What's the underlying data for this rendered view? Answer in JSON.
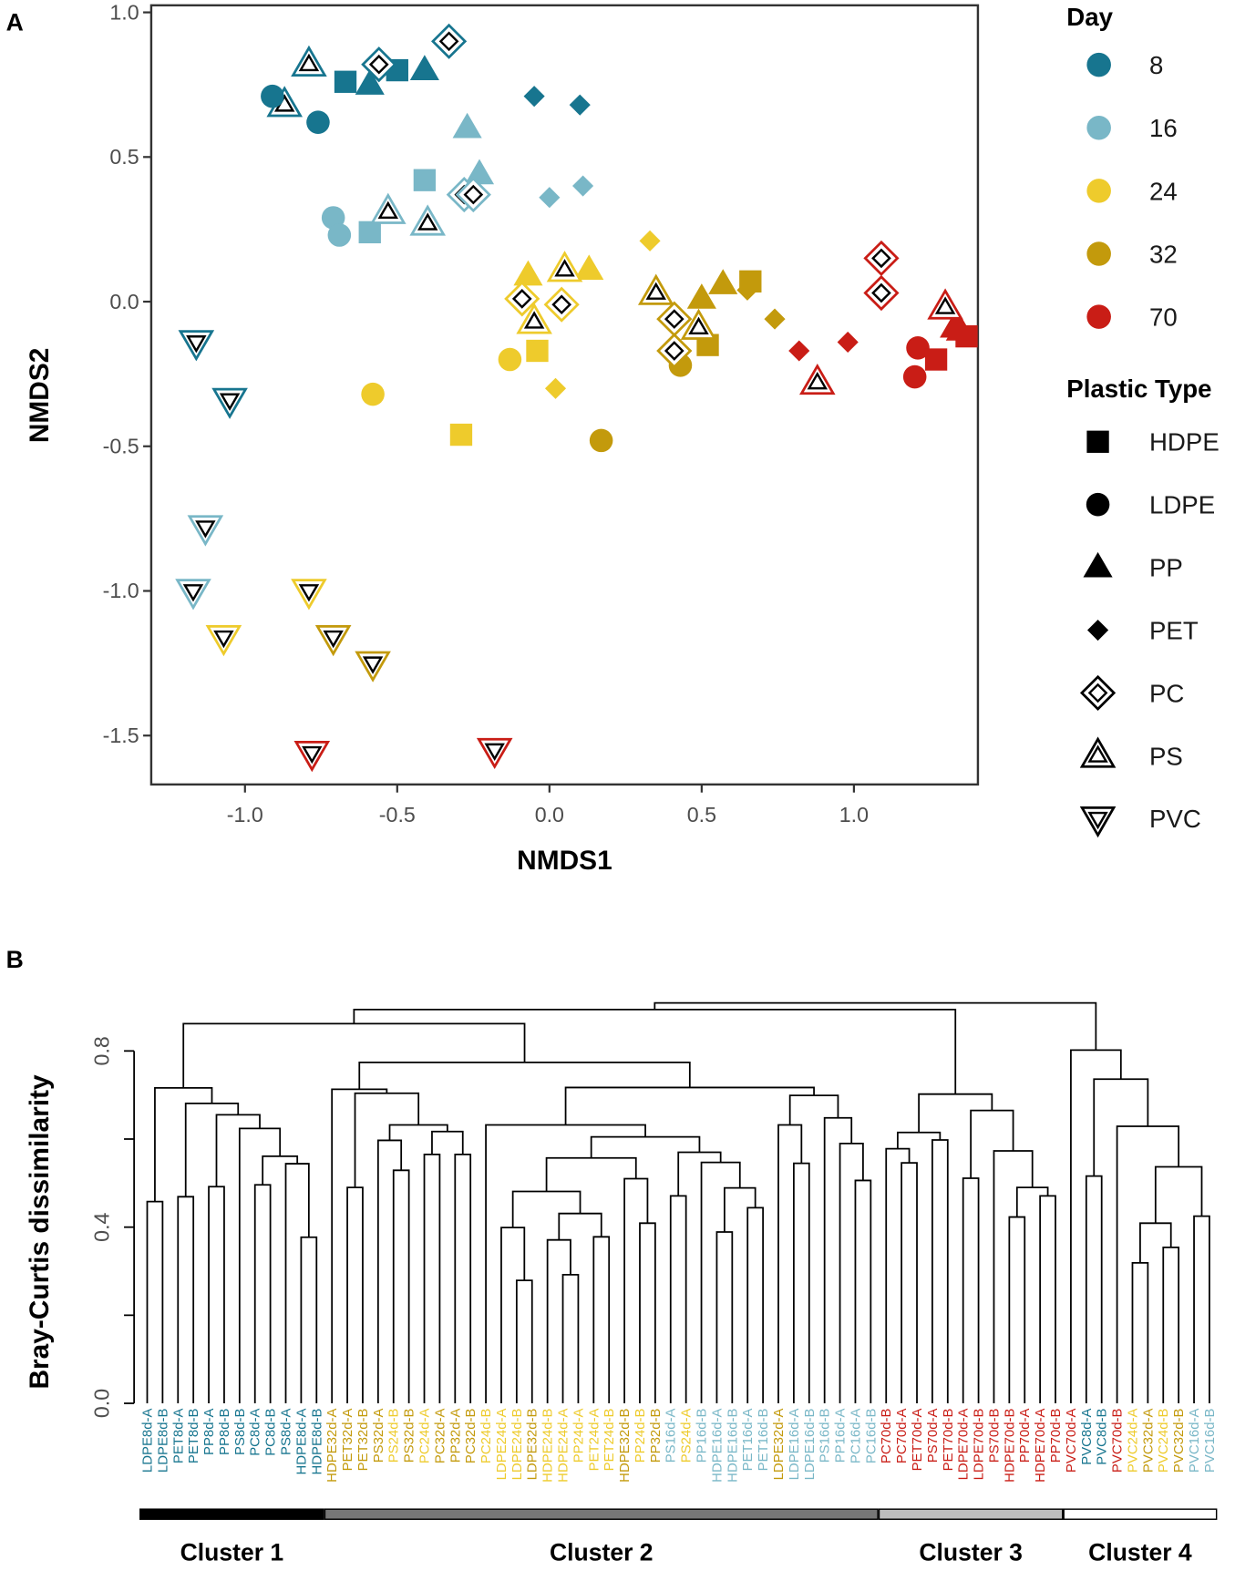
{
  "panels": {
    "a": "A",
    "b": "B"
  },
  "colors": {
    "8": "#17758f",
    "16": "#79b7c7",
    "24": "#eecb2c",
    "32": "#c39a0c",
    "70": "#c91d16"
  },
  "chart_data": [
    {
      "type": "scatter",
      "title": "",
      "xlabel": "NMDS1",
      "ylabel": "NMDS2",
      "xlim": [
        -1.3,
        1.4
      ],
      "ylim": [
        -1.65,
        1.03
      ],
      "xticks": [
        -1.0,
        -0.5,
        0.0,
        0.5,
        1.0
      ],
      "xtick_labels": [
        "-1.0",
        "-0.5",
        "0.0",
        "0.5",
        "1.0"
      ],
      "yticks": [
        1.0,
        0.5,
        0.0,
        -0.5,
        -1.0,
        -1.5
      ],
      "ytick_labels": [
        "1.0",
        "0.5",
        "0.0",
        "-0.5",
        "-1.0",
        "-1.5"
      ],
      "grid": false,
      "legend": {
        "placement": "right",
        "day_title": "Day",
        "days": [
          "8",
          "16",
          "24",
          "32",
          "70"
        ],
        "type_title": "Plastic Type",
        "types": [
          "HDPE",
          "LDPE",
          "PP",
          "PET",
          "PC",
          "PS",
          "PVC"
        ]
      },
      "points": [
        {
          "day": "8",
          "type": "PS",
          "x": -0.79,
          "y": 0.82
        },
        {
          "day": "8",
          "type": "PS",
          "x": -0.87,
          "y": 0.68
        },
        {
          "day": "8",
          "type": "LDPE",
          "x": -0.91,
          "y": 0.71
        },
        {
          "day": "8",
          "type": "LDPE",
          "x": -0.76,
          "y": 0.62
        },
        {
          "day": "8",
          "type": "HDPE",
          "x": -0.67,
          "y": 0.76
        },
        {
          "day": "8",
          "type": "HDPE",
          "x": -0.5,
          "y": 0.8
        },
        {
          "day": "8",
          "type": "PC",
          "x": -0.56,
          "y": 0.82
        },
        {
          "day": "8",
          "type": "PC",
          "x": -0.33,
          "y": 0.9
        },
        {
          "day": "8",
          "type": "PP",
          "x": -0.59,
          "y": 0.75
        },
        {
          "day": "8",
          "type": "PP",
          "x": -0.41,
          "y": 0.8
        },
        {
          "day": "8",
          "type": "PET",
          "x": -0.05,
          "y": 0.71
        },
        {
          "day": "8",
          "type": "PET",
          "x": 0.1,
          "y": 0.68
        },
        {
          "day": "8",
          "type": "PVC",
          "x": -1.16,
          "y": -0.14
        },
        {
          "day": "8",
          "type": "PVC",
          "x": -1.05,
          "y": -0.34
        },
        {
          "day": "16",
          "type": "LDPE",
          "x": -0.71,
          "y": 0.29
        },
        {
          "day": "16",
          "type": "LDPE",
          "x": -0.69,
          "y": 0.23
        },
        {
          "day": "16",
          "type": "HDPE",
          "x": -0.59,
          "y": 0.24
        },
        {
          "day": "16",
          "type": "HDPE",
          "x": -0.41,
          "y": 0.42
        },
        {
          "day": "16",
          "type": "PP",
          "x": -0.27,
          "y": 0.6
        },
        {
          "day": "16",
          "type": "PP",
          "x": -0.23,
          "y": 0.44
        },
        {
          "day": "16",
          "type": "PET",
          "x": 0.0,
          "y": 0.36
        },
        {
          "day": "16",
          "type": "PET",
          "x": 0.11,
          "y": 0.4
        },
        {
          "day": "16",
          "type": "PC",
          "x": -0.28,
          "y": 0.37
        },
        {
          "day": "16",
          "type": "PC",
          "x": -0.25,
          "y": 0.37
        },
        {
          "day": "16",
          "type": "PS",
          "x": -0.53,
          "y": 0.31
        },
        {
          "day": "16",
          "type": "PS",
          "x": -0.4,
          "y": 0.27
        },
        {
          "day": "16",
          "type": "PVC",
          "x": -1.13,
          "y": -0.78
        },
        {
          "day": "16",
          "type": "PVC",
          "x": -1.17,
          "y": -1.0
        },
        {
          "day": "24",
          "type": "LDPE",
          "x": -0.13,
          "y": -0.2
        },
        {
          "day": "24",
          "type": "LDPE",
          "x": -0.58,
          "y": -0.32
        },
        {
          "day": "24",
          "type": "HDPE",
          "x": -0.04,
          "y": -0.17
        },
        {
          "day": "24",
          "type": "HDPE",
          "x": -0.29,
          "y": -0.46
        },
        {
          "day": "24",
          "type": "PP",
          "x": -0.07,
          "y": 0.09
        },
        {
          "day": "24",
          "type": "PP",
          "x": 0.13,
          "y": 0.11
        },
        {
          "day": "24",
          "type": "PET",
          "x": 0.33,
          "y": 0.21
        },
        {
          "day": "24",
          "type": "PET",
          "x": 0.02,
          "y": -0.3
        },
        {
          "day": "24",
          "type": "PC",
          "x": -0.09,
          "y": 0.01
        },
        {
          "day": "24",
          "type": "PC",
          "x": 0.04,
          "y": -0.01
        },
        {
          "day": "24",
          "type": "PS",
          "x": 0.05,
          "y": 0.11
        },
        {
          "day": "24",
          "type": "PS",
          "x": -0.05,
          "y": -0.07
        },
        {
          "day": "24",
          "type": "PVC",
          "x": -0.79,
          "y": -1.0
        },
        {
          "day": "24",
          "type": "PVC",
          "x": -1.07,
          "y": -1.16
        },
        {
          "day": "32",
          "type": "LDPE",
          "x": 0.43,
          "y": -0.22
        },
        {
          "day": "32",
          "type": "LDPE",
          "x": 0.17,
          "y": -0.48
        },
        {
          "day": "32",
          "type": "HDPE",
          "x": 0.66,
          "y": 0.07
        },
        {
          "day": "32",
          "type": "HDPE",
          "x": 0.52,
          "y": -0.15
        },
        {
          "day": "32",
          "type": "PP",
          "x": 0.5,
          "y": 0.01
        },
        {
          "day": "32",
          "type": "PP",
          "x": 0.57,
          "y": 0.06
        },
        {
          "day": "32",
          "type": "PET",
          "x": 0.65,
          "y": 0.04
        },
        {
          "day": "32",
          "type": "PET",
          "x": 0.74,
          "y": -0.06
        },
        {
          "day": "32",
          "type": "PC",
          "x": 0.41,
          "y": -0.06
        },
        {
          "day": "32",
          "type": "PC",
          "x": 0.41,
          "y": -0.17
        },
        {
          "day": "32",
          "type": "PS",
          "x": 0.35,
          "y": 0.03
        },
        {
          "day": "32",
          "type": "PS",
          "x": 0.49,
          "y": -0.09
        },
        {
          "day": "32",
          "type": "PVC",
          "x": -0.71,
          "y": -1.16
        },
        {
          "day": "32",
          "type": "PVC",
          "x": -0.58,
          "y": -1.25
        },
        {
          "day": "70",
          "type": "LDPE",
          "x": 1.21,
          "y": -0.16
        },
        {
          "day": "70",
          "type": "LDPE",
          "x": 1.2,
          "y": -0.26
        },
        {
          "day": "70",
          "type": "HDPE",
          "x": 1.27,
          "y": -0.2
        },
        {
          "day": "70",
          "type": "HDPE",
          "x": 1.37,
          "y": -0.12
        },
        {
          "day": "70",
          "type": "PP",
          "x": 1.33,
          "y": -0.09
        },
        {
          "day": "70",
          "type": "PP",
          "x": 1.35,
          "y": -0.1
        },
        {
          "day": "70",
          "type": "PET",
          "x": 0.82,
          "y": -0.17
        },
        {
          "day": "70",
          "type": "PET",
          "x": 0.98,
          "y": -0.14
        },
        {
          "day": "70",
          "type": "PC",
          "x": 1.09,
          "y": 0.15
        },
        {
          "day": "70",
          "type": "PC",
          "x": 1.09,
          "y": 0.03
        },
        {
          "day": "70",
          "type": "PS",
          "x": 1.3,
          "y": -0.02
        },
        {
          "day": "70",
          "type": "PS",
          "x": 0.88,
          "y": -0.28
        },
        {
          "day": "70",
          "type": "PVC",
          "x": -0.78,
          "y": -1.56
        },
        {
          "day": "70",
          "type": "PVC",
          "x": -0.18,
          "y": -1.55
        }
      ]
    },
    {
      "type": "dendrogram",
      "ylabel": "Bray-Curtis dissimilarity",
      "ylim": [
        0,
        0.91
      ],
      "yticks": [
        0.0,
        0.2,
        0.4,
        0.6,
        0.8
      ],
      "ytick_labels": {
        "0": "0.0",
        "2": "0.4",
        "4": "0.8"
      },
      "leaves": [
        "LDPE8d-A",
        "LDPE8d-B",
        "PET8d-A",
        "PET8d-B",
        "PP8d-A",
        "PP8d-B",
        "PS8d-B",
        "PC8d-A",
        "PC8d-B",
        "PS8d-A",
        "HDPE8d-A",
        "HDPE8d-B",
        "HDPE32d-A",
        "PET32d-A",
        "PET32d-B",
        "PS32d-A",
        "PS24d-B",
        "PS32d-B",
        "PC24d-A",
        "PC32d-A",
        "PP32d-A",
        "PC32d-B",
        "PC24d-B",
        "LDPE24d-A",
        "LDPE24d-B",
        "LDPE32d-B",
        "HDPE24d-B",
        "HDPE24d-A",
        "PP24d-A",
        "PET24d-A",
        "PET24d-B",
        "HDPE32d-B",
        "PP24d-B",
        "PP32d-B",
        "PS16d-A",
        "PS24d-A",
        "PP16d-B",
        "HDPE16d-A",
        "HDPE16d-B",
        "PET16d-A",
        "PET16d-B",
        "LDPE32d-A",
        "LDPE16d-A",
        "LDPE16d-B",
        "PS16d-B",
        "PP16d-A",
        "PC16d-A",
        "PC16d-B",
        "PC70d-B",
        "PC70d-A",
        "PET70d-A",
        "PS70d-A",
        "PET70d-B",
        "LDPE70d-A",
        "LDPE70d-B",
        "PS70d-B",
        "HDPE70d-B",
        "PP70d-A",
        "HDPE70d-A",
        "PP70d-B",
        "PVC70d-A",
        "PVC8d-A",
        "PVC8d-B",
        "PVC70d-B",
        "PVC24d-A",
        "PVC32d-A",
        "PVC24d-B",
        "PVC32d-B",
        "PVC16d-A",
        "PVC16d-B"
      ],
      "tree": [
        0.909,
        [
          0.894,
          [
            0.862,
            [
              0.716,
              [
                0.458,
                0,
                1
              ],
              [
                0.681,
                [
                  0.469,
                  2,
                  3
                ],
                [
                  0.655,
                  [
                    0.492,
                    4,
                    5
                  ],
                  [
                    0.624,
                    6,
                    [
                      0.561,
                      [
                        0.496,
                        7,
                        8
                      ],
                      [
                        0.544,
                        9,
                        [
                          0.377,
                          10,
                          11
                        ]
                      ]
                    ]
                  ]
                ]
              ]
            ],
            [
              0.774,
              [
                0.713,
                12,
                [
                  0.704,
                  [
                    0.49,
                    13,
                    14
                  ],
                  [
                    0.632,
                    [
                      0.597,
                      15,
                      [
                        0.529,
                        16,
                        17
                      ]
                    ],
                    [
                      0.617,
                      [
                        0.565,
                        18,
                        19
                      ],
                      [
                        0.565,
                        20,
                        21
                      ]
                    ]
                  ]
                ]
              ],
              [
                0.717,
                [
                  0.632,
                  22,
                  [
                    0.605,
                    [
                      0.557,
                      [
                        0.481,
                        [
                          0.399,
                          23,
                          [
                            0.279,
                            24,
                            25
                          ]
                        ],
                        [
                          0.431,
                          [
                            0.371,
                            26,
                            [
                              0.292,
                              27,
                              28
                            ]
                          ],
                          [
                            0.378,
                            29,
                            30
                          ]
                        ]
                      ],
                      [
                        0.51,
                        31,
                        [
                          0.409,
                          32,
                          33
                        ]
                      ]
                    ],
                    [
                      0.57,
                      [
                        0.471,
                        34,
                        35
                      ],
                      [
                        0.547,
                        36,
                        [
                          0.489,
                          [
                            0.389,
                            37,
                            38
                          ],
                          [
                            0.444,
                            39,
                            40
                          ]
                        ]
                      ]
                    ]
                  ]
                ],
                [
                  0.699,
                  [
                    0.632,
                    41,
                    [
                      0.545,
                      42,
                      43
                    ]
                  ],
                  [
                    0.648,
                    44,
                    [
                      0.59,
                      45,
                      [
                        0.506,
                        46,
                        47
                      ]
                    ]
                  ]
                ]
              ]
            ]
          ],
          [
            0.702,
            [
              0.615,
              [
                0.578,
                48,
                [
                  0.546,
                  49,
                  50
                ]
              ],
              [
                0.598,
                51,
                52
              ]
            ],
            [
              0.665,
              [
                0.511,
                53,
                54
              ],
              [
                0.573,
                55,
                [
                  0.49,
                  [
                    0.423,
                    56,
                    57
                  ],
                  [
                    0.471,
                    58,
                    59
                  ]
                ]
              ]
            ]
          ]
        ],
        [
          0.802,
          60,
          [
            0.736,
            [
              0.516,
              61,
              62
            ],
            [
              0.629,
              63,
              [
                0.537,
                [
                  0.409,
                  [
                    0.319,
                    64,
                    65
                  ],
                  [
                    0.354,
                    66,
                    67
                  ]
                ],
                [
                  0.425,
                  68,
                  69
                ]
              ]
            ]
          ]
        ]
      ],
      "clusters": [
        {
          "label": "Cluster 1",
          "from": 0,
          "to": 11,
          "fill": "#000000"
        },
        {
          "label": "Cluster 2",
          "from": 12,
          "to": 47,
          "fill": "#777777"
        },
        {
          "label": "Cluster 3",
          "from": 48,
          "to": 59,
          "fill": "#bdbdbd"
        },
        {
          "label": "Cluster 4",
          "from": 60,
          "to": 69,
          "fill": "#ffffff"
        }
      ]
    }
  ]
}
